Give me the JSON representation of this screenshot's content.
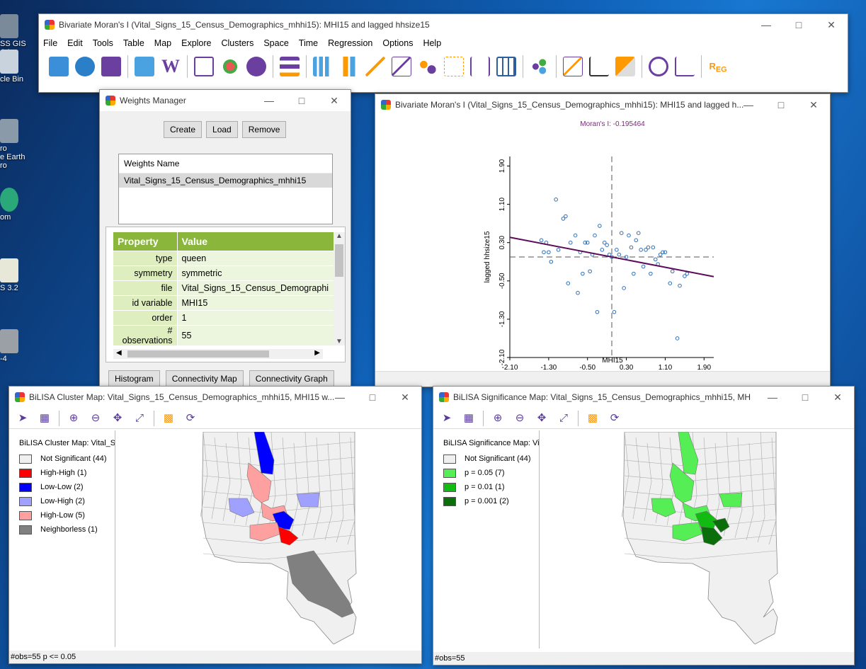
{
  "desktop": {
    "icons": [
      {
        "label": "SS GIS\n4.1",
        "top": 20
      },
      {
        "label": "cle Bin",
        "top": 70
      },
      {
        "label": "ro\ne Earth\nro",
        "top": 168
      },
      {
        "label": "om",
        "top": 265
      },
      {
        "label": "S 3.2",
        "top": 365
      },
      {
        "label": "-4",
        "top": 465
      }
    ]
  },
  "main_window": {
    "title": "Bivariate Moran's I (Vital_Signs_15_Census_Demographics_mhhi15): MHI15 and lagged hhsize15",
    "menu": [
      "File",
      "Edit",
      "Tools",
      "Table",
      "Map",
      "Explore",
      "Clusters",
      "Space",
      "Time",
      "Regression",
      "Options",
      "Help"
    ]
  },
  "weights_manager": {
    "title": "Weights Manager",
    "buttons": {
      "create": "Create",
      "load": "Load",
      "remove": "Remove"
    },
    "list_header": "Weights Name",
    "list_item": "Vital_Signs_15_Census_Demographics_mhhi15",
    "table": {
      "header_property": "Property",
      "header_value": "Value",
      "rows": [
        {
          "p": "type",
          "v": "queen"
        },
        {
          "p": "symmetry",
          "v": "symmetric"
        },
        {
          "p": "file",
          "v": "Vital_Signs_15_Census_Demographi"
        },
        {
          "p": "id variable",
          "v": "MHI15"
        },
        {
          "p": "order",
          "v": "1"
        },
        {
          "p": "#\nobservations",
          "v": "55"
        }
      ]
    },
    "bottom_buttons": {
      "histogram": "Histogram",
      "conn_map": "Connectivity Map",
      "conn_graph": "Connectivity Graph"
    }
  },
  "moran_window": {
    "title": "Bivariate Moran's I (Vital_Signs_15_Census_Demographics_mhhi15): MHI15 and lagged h...",
    "moran_label": "Moran's I: -0.195464",
    "chart_data": {
      "type": "scatter",
      "title": "Moran's I: -0.195464",
      "xlabel": "MHI15",
      "ylabel": "lagged hhsize15",
      "xlim": [
        -2.1,
        2.1
      ],
      "ylim": [
        -2.1,
        2.1
      ],
      "xticks": [
        "-2.10",
        "-1.30",
        "-0.50",
        "0.30",
        "1.10",
        "1.90"
      ],
      "yticks": [
        "1.90",
        "1.10",
        "0.30",
        "-0.50",
        "-1.30",
        "-2.10"
      ],
      "slope": -0.195464,
      "points": [
        [
          -1.45,
          0.35
        ],
        [
          -1.4,
          0.1
        ],
        [
          -1.35,
          0.3
        ],
        [
          -1.3,
          0.1
        ],
        [
          -1.25,
          -0.1
        ],
        [
          -1.15,
          1.2
        ],
        [
          -1.1,
          0.15
        ],
        [
          -1.0,
          0.8
        ],
        [
          -0.95,
          0.85
        ],
        [
          -0.9,
          -0.55
        ],
        [
          -0.85,
          0.3
        ],
        [
          -0.75,
          0.45
        ],
        [
          -0.7,
          -0.75
        ],
        [
          -0.65,
          0.1
        ],
        [
          -0.6,
          -0.35
        ],
        [
          -0.55,
          0.3
        ],
        [
          -0.5,
          0.3
        ],
        [
          -0.45,
          -0.3
        ],
        [
          -0.4,
          0.05
        ],
        [
          -0.35,
          0.45
        ],
        [
          -0.3,
          -1.15
        ],
        [
          -0.25,
          0.65
        ],
        [
          -0.2,
          0.15
        ],
        [
          -0.15,
          0.3
        ],
        [
          -0.1,
          0.25
        ],
        [
          -0.05,
          0.05
        ],
        [
          0.0,
          0.0
        ],
        [
          0.05,
          -1.15
        ],
        [
          0.1,
          0.15
        ],
        [
          0.15,
          0.05
        ],
        [
          0.2,
          0.5
        ],
        [
          0.25,
          -0.65
        ],
        [
          0.3,
          0.0
        ],
        [
          0.35,
          0.45
        ],
        [
          0.4,
          0.2
        ],
        [
          0.45,
          -0.35
        ],
        [
          0.5,
          0.35
        ],
        [
          0.55,
          0.5
        ],
        [
          0.6,
          0.15
        ],
        [
          0.65,
          -0.2
        ],
        [
          0.7,
          0.15
        ],
        [
          0.75,
          0.2
        ],
        [
          0.8,
          -0.35
        ],
        [
          0.85,
          0.2
        ],
        [
          0.9,
          -0.05
        ],
        [
          0.95,
          -0.15
        ],
        [
          1.0,
          0.05
        ],
        [
          1.05,
          0.1
        ],
        [
          1.1,
          0.1
        ],
        [
          1.2,
          -0.55
        ],
        [
          1.25,
          -0.3
        ],
        [
          1.35,
          -1.7
        ],
        [
          1.4,
          -0.6
        ],
        [
          1.5,
          -0.4
        ],
        [
          1.55,
          -0.35
        ]
      ]
    }
  },
  "cluster_map": {
    "title": "BiLISA Cluster Map: Vital_Signs_15_Census_Demographics_mhhi15, MHI15 w...",
    "legend_title": "BiLISA Cluster Map: Vital_S",
    "legend": [
      {
        "label": "Not Significant (44)",
        "color": "#f0f0f0"
      },
      {
        "label": "High-High (1)",
        "color": "#ff0000"
      },
      {
        "label": "Low-Low (2)",
        "color": "#0000ff"
      },
      {
        "label": "Low-High (2)",
        "color": "#a0a0ff"
      },
      {
        "label": "High-Low (5)",
        "color": "#ffa0a0"
      },
      {
        "label": "Neighborless (1)",
        "color": "#808080"
      }
    ],
    "status": "#obs=55  p <= 0.05"
  },
  "significance_map": {
    "title": "BiLISA Significance Map: Vital_Signs_15_Census_Demographics_mhhi15, MHI1...",
    "legend_title": "BiLISA Significance Map: Vi",
    "legend": [
      {
        "label": "Not Significant (44)",
        "color": "#f0f0f0"
      },
      {
        "label": "p = 0.05 (7)",
        "color": "#55ee55"
      },
      {
        "label": "p = 0.01 (1)",
        "color": "#11bb11"
      },
      {
        "label": "p = 0.001 (2)",
        "color": "#0a6e0a"
      }
    ],
    "status": "#obs=55"
  }
}
